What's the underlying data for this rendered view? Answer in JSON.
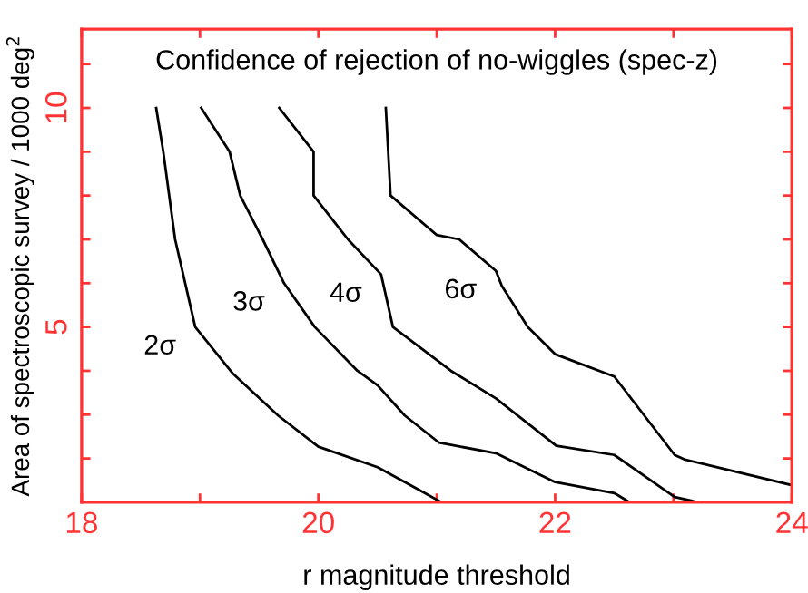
{
  "chart_data": {
    "type": "line",
    "title": "Confidence of rejection of no-wiggles (spec-z)",
    "xlabel": "r magnitude threshold",
    "ylabel": "Area of spectroscopic survey / 1000 deg$^{2}$",
    "series": [
      {
        "name": "2σ",
        "color": "#000000",
        "x": [
          18.63,
          18.69,
          18.79,
          18.96,
          19.28,
          19.66,
          20.0,
          20.5,
          20.84,
          21.04
        ],
        "values": [
          10,
          9,
          7,
          5,
          3.93,
          2.98,
          2.27,
          1.8,
          1.3,
          1.0
        ]
      },
      {
        "name": "3σ",
        "color": "#000000",
        "x": [
          19.01,
          19.25,
          19.34,
          19.53,
          19.71,
          19.97,
          20.33,
          20.5,
          20.73,
          21.02,
          21.5,
          22.0,
          22.5,
          22.63
        ],
        "values": [
          10,
          9,
          8,
          7,
          6,
          5,
          4.0,
          3.67,
          2.98,
          2.36,
          2.12,
          1.46,
          1.21,
          1.0
        ]
      },
      {
        "name": "4σ",
        "color": "#000000",
        "x": [
          19.67,
          19.96,
          19.96,
          20.25,
          20.53,
          20.63,
          21.12,
          21.5,
          22.01,
          22.5,
          23.01,
          23.21
        ],
        "values": [
          10,
          9,
          8,
          7,
          6.2,
          5,
          4.0,
          3.37,
          2.29,
          2.08,
          1.12,
          1.0
        ]
      },
      {
        "name": "6σ",
        "color": "#000000",
        "x": [
          20.57,
          20.61,
          21.0,
          21.19,
          21.5,
          21.55,
          21.77,
          22.0,
          22.5,
          23.01,
          23.09,
          24.0
        ],
        "values": [
          10,
          8,
          7.1,
          7.0,
          6.28,
          5.94,
          5.0,
          4.38,
          3.87,
          2.08,
          1.98,
          1.39
        ]
      }
    ],
    "xlim": [
      18,
      24
    ],
    "ylim": [
      1,
      11.8
    ],
    "xticks": [
      18,
      {
        "value": 19,
        "label": null
      },
      20,
      {
        "value": 21,
        "label": null
      },
      22,
      {
        "value": 23,
        "label": null
      },
      24
    ],
    "yticks": [
      {
        "value": 2,
        "label": null
      },
      {
        "value": 3,
        "label": null
      },
      {
        "value": 4,
        "label": null
      },
      5,
      {
        "value": 6,
        "label": null
      },
      {
        "value": 7,
        "label": null
      },
      {
        "value": 8,
        "label": null
      },
      {
        "value": 9,
        "label": null
      },
      10,
      {
        "value": 11,
        "label": null
      }
    ],
    "line_style": "solid",
    "marker": "none",
    "grid": false,
    "legend": false
  }
}
